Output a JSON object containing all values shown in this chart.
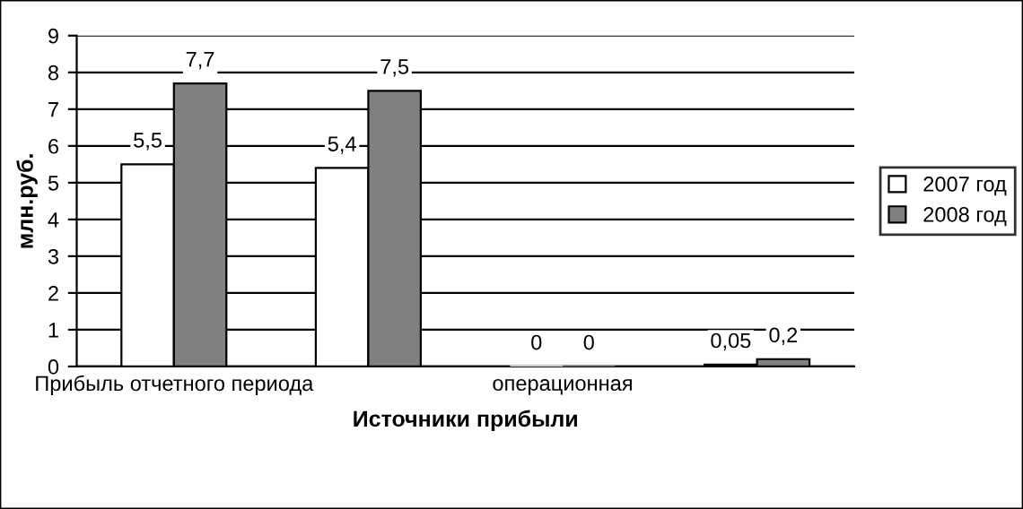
{
  "chart_data": {
    "type": "bar",
    "xlabel": "Источники прибыли",
    "ylabel": "млн.руб.",
    "categories": [
      "Прибыль отчетного периода",
      null,
      "операционная",
      null
    ],
    "series": [
      {
        "name": "2007 год",
        "color": "#ffffff",
        "values": [
          5.5,
          5.4,
          0,
          0.05
        ],
        "value_labels": [
          "5,5",
          "5,4",
          "0",
          "0,05"
        ]
      },
      {
        "name": "2008 год",
        "color": "#808080",
        "values": [
          7.7,
          7.5,
          0,
          0.2
        ],
        "value_labels": [
          "7,7",
          "7,5",
          "0",
          "0,2"
        ]
      }
    ],
    "ylim": [
      0,
      9
    ],
    "yticks": [
      0,
      1,
      2,
      3,
      4,
      5,
      6,
      7,
      8,
      9
    ],
    "grid": "y",
    "legend": "right"
  }
}
